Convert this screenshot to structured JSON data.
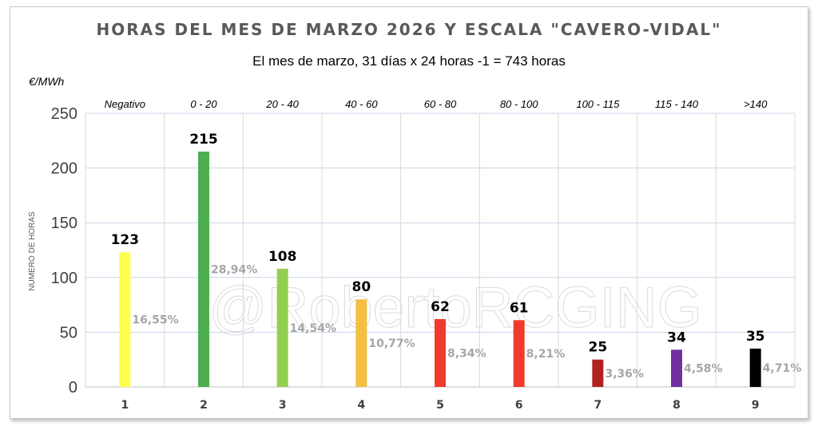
{
  "chart_data": {
    "type": "bar",
    "title": "HORAS DEL MES DE MARZO 2026 Y ESCALA \"CAVERO-VIDAL\"",
    "subtitle": "El mes de marzo, 31 días x 24 horas -1  = 743 horas",
    "unit_label": "€/MWh",
    "ylabel": "NUMERO DE HORAS",
    "ylim": [
      0,
      250
    ],
    "yticks": [
      "0",
      "50",
      "100",
      "150",
      "200",
      "250"
    ],
    "grid": true,
    "categories": [
      "1",
      "2",
      "3",
      "4",
      "5",
      "6",
      "7",
      "8",
      "9"
    ],
    "ranges": [
      "Negativo",
      "0 - 20",
      "20 - 40",
      "40 - 60",
      "60 - 80",
      "80 - 100",
      "100 - 115",
      "115 - 140",
      ">140"
    ],
    "values": [
      123,
      215,
      108,
      80,
      62,
      61,
      25,
      34,
      35
    ],
    "percentages": [
      "16,55%",
      "28,94%",
      "14,54%",
      "10,77%",
      "8,34%",
      "8,21%",
      "3,36%",
      "4,58%",
      "4,71%"
    ],
    "colors": [
      "#ffff4d",
      "#4caf50",
      "#92d050",
      "#f4c042",
      "#ef3b2c",
      "#ef3b2c",
      "#b22222",
      "#7030a0",
      "#000000"
    ],
    "watermark": "@RobertoRCGING"
  }
}
